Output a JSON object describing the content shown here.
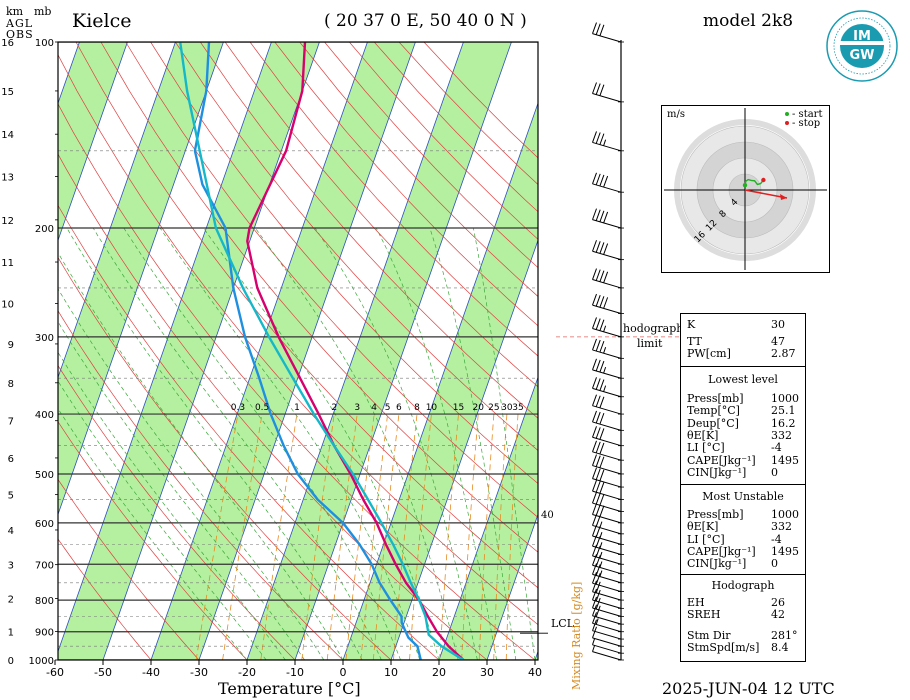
{
  "header": {
    "station": "Kielce",
    "coords": "( 20 37 0 E, 50 40 0 N )",
    "model": "model 2k8",
    "km_label": "km",
    "mb_label": "mb",
    "agl_label": "AGL",
    "obs_label": "OBS",
    "datetime": "2025-JUN-04   12 UTC"
  },
  "logo": {
    "text": "IMGW",
    "icon": "imgw-logo-icon",
    "color": "#1a9bb0"
  },
  "axes": {
    "xlabel": "Temperature [°C]",
    "mixing_label": "Mixing Ratio [g/kg]",
    "hodograph_note": [
      "hodograph",
      "limit"
    ],
    "lcl_label": "LCL",
    "x_ticks": [
      "-60",
      "-50",
      "-40",
      "-30",
      "-20",
      "-10",
      "0",
      "10",
      "20",
      "30",
      "40"
    ],
    "pressure_ticks": [
      "100",
      "200",
      "300",
      "400",
      "500",
      "600",
      "700",
      "800",
      "900",
      "1000"
    ],
    "km_ticks": [
      "16",
      "15",
      "14",
      "13",
      "12",
      "11",
      "10",
      "9",
      "8",
      "7",
      "6",
      "5",
      "4",
      "3",
      "2",
      "1",
      "0"
    ],
    "mixing_ratio_ticks": [
      "0.3",
      "0.5",
      "1",
      "2",
      "3",
      "4",
      "5",
      "6",
      "8",
      "10",
      "15",
      "20",
      "25",
      "30",
      "35"
    ],
    "side_value": "40"
  },
  "hodograph_panel": {
    "unit": "m/s",
    "legend_start": "- start",
    "legend_stop": "- stop",
    "ring_labels": [
      "4",
      "8",
      "12",
      "16"
    ]
  },
  "indices": {
    "K_label": "K",
    "K": "30",
    "TT_label": "TT",
    "TT": "47",
    "PW_label": "PW[cm]",
    "PW": "2.87",
    "lowest_title": "Lowest level",
    "lowest": [
      {
        "k": "Press[mb]",
        "v": "1000"
      },
      {
        "k": "Temp[°C]",
        "v": "25.1"
      },
      {
        "k": "Deup[°C]",
        "v": "16.2"
      },
      {
        "k": "θE[K]",
        "v": "332"
      },
      {
        "k": "LI [°C]",
        "v": "-4"
      },
      {
        "k": "CAPE[Jkg⁻¹]",
        "v": "1495"
      },
      {
        "k": "CIN[Jkg⁻¹]",
        "v": "0"
      }
    ],
    "unstable_title": "Most Unstable",
    "unstable": [
      {
        "k": "Press[mb]",
        "v": "1000"
      },
      {
        "k": "θE[K]",
        "v": "332"
      },
      {
        "k": "LI [°C]",
        "v": "-4"
      },
      {
        "k": "CAPE[Jkg⁻¹]",
        "v": "1495"
      },
      {
        "k": "CIN[Jkg⁻¹]",
        "v": "0"
      }
    ],
    "hodo_title": "Hodograph",
    "hodo": [
      {
        "k": "EH",
        "v": "26"
      },
      {
        "k": "SREH",
        "v": "42"
      },
      {
        "k": "Stm Dir",
        "v": "281°"
      },
      {
        "k": "StmSpd[m/s]",
        "v": "8.4"
      }
    ]
  },
  "colors": {
    "temperature": "#d6006e",
    "dewpoint": "#1f8fe0",
    "parcel": "#15b8c8",
    "band_fill": "#b5f0a0",
    "dry_adiabat": "#e04040",
    "moist_adiabat": "#3aa83a",
    "mixing_ratio": "#e88a20",
    "isotherm": "#2b4fbf"
  },
  "chart_data": {
    "type": "line",
    "title": "",
    "xlabel": "Temperature [°C]",
    "ylabel": "",
    "xlim": [
      -60,
      40
    ],
    "ylim": [
      1000,
      100
    ],
    "pressure_scale": "log",
    "series": [
      {
        "name": "",
        "role": "temperature",
        "pressure": [
          1000,
          950,
          900,
          850,
          800,
          750,
          700,
          650,
          600,
          550,
          500,
          450,
          400,
          350,
          300,
          250,
          210,
          200,
          150,
          120,
          100
        ],
        "temperature": [
          25.1,
          21.0,
          17.5,
          14.5,
          11.5,
          7.5,
          4.0,
          0.5,
          -3.0,
          -7.5,
          -12.0,
          -17.5,
          -23.0,
          -29.5,
          -37.0,
          -45.0,
          -50.5,
          -51.0,
          -49.0,
          -50.0,
          -53.0
        ]
      },
      {
        "name": "",
        "role": "dewpoint",
        "pressure": [
          1000,
          950,
          920,
          900,
          870,
          850,
          800,
          750,
          700,
          650,
          600,
          550,
          500,
          450,
          400,
          350,
          300,
          250,
          200,
          170,
          150,
          120,
          100
        ],
        "temperature": [
          16.2,
          14.5,
          12.0,
          11.0,
          9.5,
          9.0,
          5.5,
          2.0,
          -1.0,
          -5.0,
          -10.0,
          -17.0,
          -23.0,
          -28.0,
          -33.0,
          -38.0,
          -44.0,
          -50.0,
          -56.0,
          -64.0,
          -68.0,
          -70.0,
          -73.0
        ]
      },
      {
        "name": "",
        "role": "parcel",
        "pressure": [
          1000,
          950,
          910,
          850,
          800,
          750,
          700,
          650,
          600,
          550,
          500,
          450,
          400,
          350,
          300,
          250,
          200,
          150,
          120,
          100
        ],
        "temperature": [
          25.1,
          19.5,
          16.0,
          14.0,
          11.5,
          8.5,
          5.5,
          2.0,
          -2.0,
          -6.5,
          -11.5,
          -17.5,
          -24.0,
          -31.0,
          -39.0,
          -48.0,
          -58.0,
          -67.0,
          -74.0,
          -79.0
        ]
      }
    ],
    "wind_barbs": {
      "pressure": [
        1000,
        975,
        950,
        925,
        900,
        875,
        850,
        825,
        800,
        775,
        750,
        725,
        700,
        675,
        650,
        625,
        600,
        575,
        550,
        525,
        500,
        475,
        450,
        425,
        400,
        375,
        350,
        325,
        300,
        275,
        250,
        225,
        200,
        175,
        150,
        125,
        100
      ],
      "speed_ms": [
        2,
        3,
        5,
        6,
        8,
        9,
        10,
        10,
        11,
        11,
        12,
        12,
        12,
        13,
        13,
        13,
        14,
        14,
        14,
        15,
        15,
        15,
        16,
        16,
        16,
        17,
        17,
        18,
        18,
        19,
        20,
        20,
        20,
        19,
        18,
        16,
        14
      ]
    },
    "hodograph": {
      "rings_ms": [
        4,
        8,
        12,
        16
      ],
      "u": [
        0.0,
        0.2,
        0.8,
        1.6,
        2.4,
        3.1,
        3.9,
        4.6
      ],
      "v": [
        1.2,
        2.2,
        2.6,
        2.4,
        2.3,
        1.4,
        1.6,
        2.5
      ]
    },
    "lcl_pressure": 905
  }
}
